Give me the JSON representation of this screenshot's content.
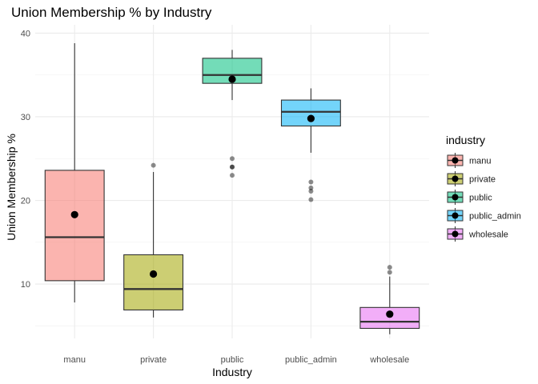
{
  "chart_data": {
    "type": "box",
    "title": "Union Membership % by Industry",
    "xlabel": "Industry",
    "ylabel": "Union Membership %",
    "ylim": [
      3.5,
      41
    ],
    "yticks": [
      10,
      20,
      30,
      40
    ],
    "grid": true,
    "legend": {
      "title": "industry",
      "position": "right"
    },
    "categories": [
      "manu",
      "private",
      "public",
      "public_admin",
      "wholesale"
    ],
    "colors": [
      "#F8766D",
      "#A3A500",
      "#00BF7D",
      "#00B0F6",
      "#E76BF3"
    ],
    "boxes": [
      {
        "name": "manu",
        "min": 7.8,
        "q1": 10.4,
        "median": 15.6,
        "q3": 23.6,
        "max": 38.8,
        "mean": 18.3,
        "outliers": []
      },
      {
        "name": "private",
        "min": 6.0,
        "q1": 6.9,
        "median": 9.4,
        "q3": 13.5,
        "max": 23.4,
        "mean": 11.2,
        "outliers": [
          24.2
        ]
      },
      {
        "name": "public",
        "min": 32.0,
        "q1": 34.0,
        "median": 35.0,
        "q3": 37.0,
        "max": 38.0,
        "mean": 34.5,
        "outliers": [
          25.0,
          24.0,
          24.0,
          23.0
        ]
      },
      {
        "name": "public_admin",
        "min": 25.7,
        "q1": 28.9,
        "median": 30.6,
        "q3": 32.0,
        "max": 33.4,
        "mean": 29.8,
        "outliers": [
          22.2,
          21.5,
          21.1,
          20.1
        ]
      },
      {
        "name": "wholesale",
        "min": 4.0,
        "q1": 4.7,
        "median": 5.5,
        "q3": 7.2,
        "max": 10.9,
        "mean": 6.4,
        "outliers": [
          12.0,
          11.4
        ]
      }
    ]
  }
}
